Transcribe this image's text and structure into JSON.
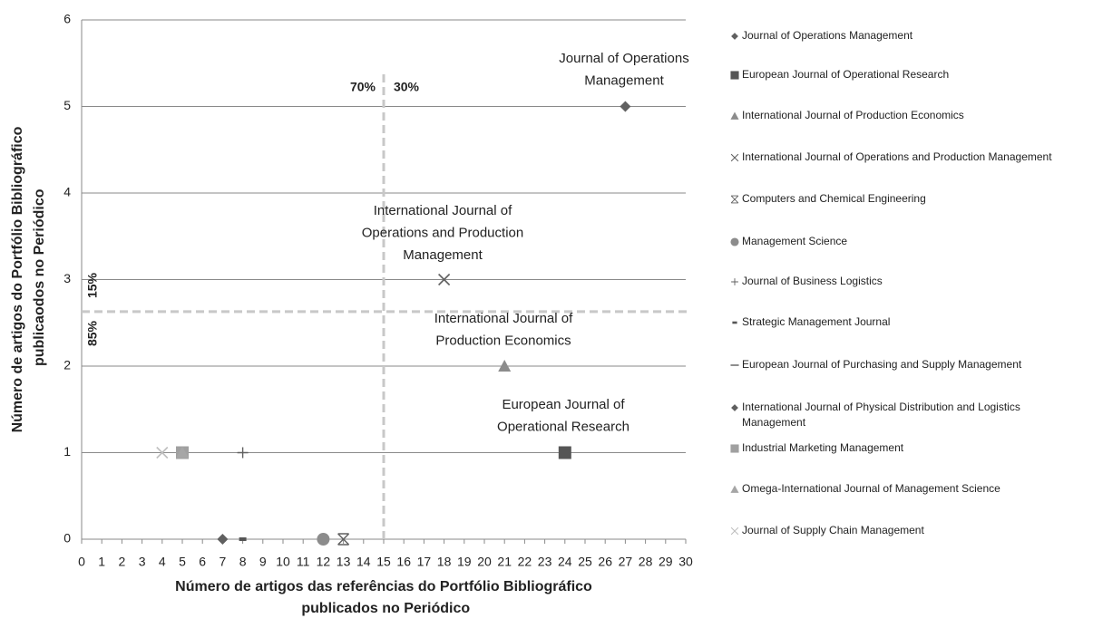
{
  "chart_data": {
    "type": "scatter",
    "x_label": "Número de artigos das referências do Portfólio Bibliográfico publicados  no Periódico",
    "y_label": "Número de artigos do Portfólio Bibliográfico publicaodos  no Periódico",
    "xlim": [
      0,
      30
    ],
    "ylim": [
      0,
      6
    ],
    "xticks": [
      0,
      1,
      2,
      3,
      4,
      5,
      6,
      7,
      8,
      9,
      10,
      11,
      12,
      13,
      14,
      15,
      16,
      17,
      18,
      19,
      20,
      21,
      22,
      23,
      24,
      25,
      26,
      27,
      28,
      29,
      30
    ],
    "yticks": [
      0,
      1,
      2,
      3,
      4,
      5,
      6
    ],
    "grid": true,
    "reference_lines": {
      "x": 15,
      "y": 2.63
    },
    "split_labels": [
      "70%",
      "30%",
      "15%",
      "85%"
    ],
    "annotations": [
      [
        "Journal of Operations",
        "Management"
      ],
      [
        "International Journal of",
        "Operations and Production",
        "Management"
      ],
      [
        "International Journal of",
        "Production Economics"
      ],
      [
        "European Journal of",
        "Operational Research"
      ]
    ],
    "series": [
      {
        "name": "Journal of Operations Management",
        "color": "#606060",
        "marker": "diamond",
        "x": [
          27
        ],
        "y": [
          5
        ]
      },
      {
        "name": "European Journal of Operational Research",
        "color": "#555555",
        "marker": "square",
        "x": [
          24
        ],
        "y": [
          1
        ]
      },
      {
        "name": "International Journal of Production Economics",
        "color": "#8c8c8c",
        "marker": "triangle",
        "x": [
          21
        ],
        "y": [
          2
        ]
      },
      {
        "name": "International Journal of Operations and Production Management",
        "color": "#606060",
        "marker": "x",
        "x": [
          18
        ],
        "y": [
          3
        ]
      },
      {
        "name": "Computers and Chemical Engineering",
        "color": "#606060",
        "marker": "asterisk",
        "x": [
          13
        ],
        "y": [
          0
        ]
      },
      {
        "name": "Management Science",
        "color": "#8c8c8c",
        "marker": "circle",
        "x": [
          12
        ],
        "y": [
          0
        ]
      },
      {
        "name": "Journal of Business Logistics",
        "color": "#606060",
        "marker": "plus",
        "x": [
          8
        ],
        "y": [
          1
        ]
      },
      {
        "name": "Strategic Management Journal",
        "color": "#555555",
        "marker": "dash",
        "x": [
          8
        ],
        "y": [
          0
        ]
      },
      {
        "name": "European Journal of Purchasing and Supply Management",
        "color": "#8c8c8c",
        "marker": "longdash",
        "x": [
          5
        ],
        "y": [
          1
        ]
      },
      {
        "name": "International Journal of Physical Distribution and Logistics Management",
        "color": "#606060",
        "marker": "diamond",
        "x": [
          7
        ],
        "y": [
          0
        ]
      },
      {
        "name": "Industrial Marketing Management",
        "color": "#a0a0a0",
        "marker": "square",
        "x": [
          5
        ],
        "y": [
          1
        ]
      },
      {
        "name": "Omega-International Journal of Management Science",
        "color": "#a6a6a6",
        "marker": "triangle",
        "x": [
          5
        ],
        "y": [
          1
        ]
      },
      {
        "name": "Journal of Supply Chain Management",
        "color": "#bfbfbf",
        "marker": "x",
        "x": [
          4
        ],
        "y": [
          1
        ]
      }
    ]
  }
}
